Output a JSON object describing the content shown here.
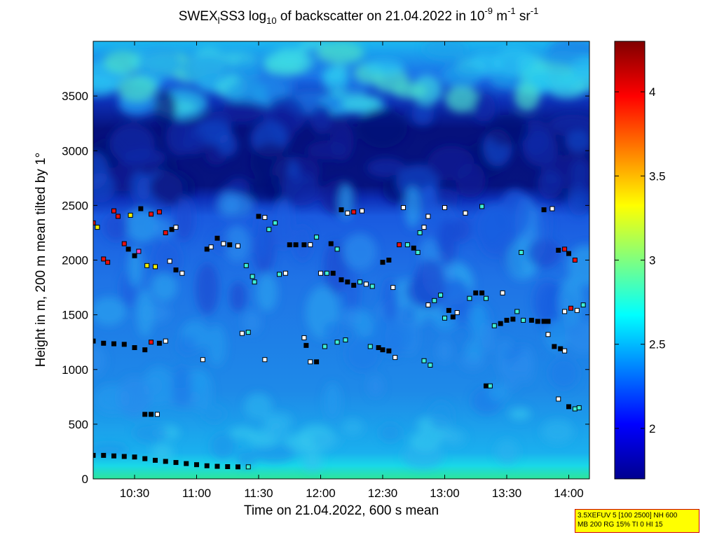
{
  "chart_data": {
    "type": "heatmap",
    "title": {
      "prefix": "SWEX",
      "sub1": "l",
      "mid1": "SS3 log",
      "sub2": "10",
      "mid2": " of backscatter on 21.04.2022 in 10",
      "sup1": "-9",
      "mid3": " m",
      "sup2": "-1",
      "mid4": " sr",
      "sup3": "-1"
    },
    "xlabel": "Time on 21.04.2022, 600 s mean",
    "ylabel": "Height in m, 200 m mean tilted by 1°",
    "xlim": [
      "10:10",
      "14:10"
    ],
    "ylim": [
      0,
      4000
    ],
    "x_ticks": [
      "10:30",
      "11:00",
      "11:30",
      "12:00",
      "12:30",
      "13:00",
      "13:30",
      "14:00"
    ],
    "y_ticks": [
      0,
      500,
      1000,
      1500,
      2000,
      2500,
      3000,
      3500
    ],
    "colorbar": {
      "range": [
        1.7,
        4.3
      ],
      "ticks": [
        2,
        2.5,
        3,
        3.5,
        4
      ],
      "colormap": "jet"
    },
    "field": {
      "description_units": "log10 backscatter",
      "surface_layer": {
        "height_range": [
          0,
          150
        ],
        "value": 2.5
      },
      "boundary_layer": {
        "height_range": [
          150,
          2500
        ],
        "value": 2.1
      },
      "clear_layer": {
        "height_range": [
          2500,
          3400
        ],
        "value": 1.75
      },
      "upper_layer": {
        "height_range": [
          3400,
          4000
        ],
        "value": 2.3
      }
    },
    "markers": [
      {
        "t": "10:10",
        "h": 215,
        "c": "black"
      },
      {
        "t": "10:15",
        "h": 215,
        "c": "black"
      },
      {
        "t": "10:20",
        "h": 210,
        "c": "black"
      },
      {
        "t": "10:25",
        "h": 205,
        "c": "black"
      },
      {
        "t": "10:30",
        "h": 200,
        "c": "black"
      },
      {
        "t": "10:35",
        "h": 185,
        "c": "black"
      },
      {
        "t": "10:40",
        "h": 170,
        "c": "black"
      },
      {
        "t": "10:45",
        "h": 160,
        "c": "black"
      },
      {
        "t": "10:50",
        "h": 150,
        "c": "black"
      },
      {
        "t": "10:55",
        "h": 140,
        "c": "black"
      },
      {
        "t": "11:00",
        "h": 130,
        "c": "black"
      },
      {
        "t": "11:05",
        "h": 120,
        "c": "black"
      },
      {
        "t": "11:10",
        "h": 115,
        "c": "black"
      },
      {
        "t": "11:15",
        "h": 112,
        "c": "black"
      },
      {
        "t": "11:20",
        "h": 110,
        "c": "black"
      },
      {
        "t": "11:25",
        "h": 110,
        "c": "cyan"
      },
      {
        "t": "10:10",
        "h": 1260,
        "c": "black"
      },
      {
        "t": "10:15",
        "h": 1240,
        "c": "black"
      },
      {
        "t": "10:20",
        "h": 1235,
        "c": "black"
      },
      {
        "t": "10:25",
        "h": 1230,
        "c": "black"
      },
      {
        "t": "10:30",
        "h": 1200,
        "c": "black"
      },
      {
        "t": "10:35",
        "h": 1180,
        "c": "black"
      },
      {
        "t": "10:38",
        "h": 1250,
        "c": "red"
      },
      {
        "t": "10:42",
        "h": 1240,
        "c": "black"
      },
      {
        "t": "10:45",
        "h": 1260,
        "c": "white"
      },
      {
        "t": "10:10",
        "h": 2340,
        "c": "red"
      },
      {
        "t": "10:12",
        "h": 2300,
        "c": "yellow"
      },
      {
        "t": "10:15",
        "h": 2010,
        "c": "red"
      },
      {
        "t": "10:17",
        "h": 1980,
        "c": "red"
      },
      {
        "t": "10:20",
        "h": 2450,
        "c": "red"
      },
      {
        "t": "10:22",
        "h": 2400,
        "c": "red"
      },
      {
        "t": "10:25",
        "h": 2150,
        "c": "red"
      },
      {
        "t": "10:27",
        "h": 2100,
        "c": "black"
      },
      {
        "t": "10:28",
        "h": 2410,
        "c": "yellow"
      },
      {
        "t": "10:30",
        "h": 2040,
        "c": "black"
      },
      {
        "t": "10:32",
        "h": 2080,
        "c": "magenta"
      },
      {
        "t": "10:33",
        "h": 2470,
        "c": "black"
      },
      {
        "t": "10:36",
        "h": 1950,
        "c": "yellow"
      },
      {
        "t": "10:38",
        "h": 2420,
        "c": "red"
      },
      {
        "t": "10:40",
        "h": 1940,
        "c": "yellow"
      },
      {
        "t": "10:42",
        "h": 2440,
        "c": "red"
      },
      {
        "t": "10:45",
        "h": 2250,
        "c": "red"
      },
      {
        "t": "10:48",
        "h": 2280,
        "c": "black"
      },
      {
        "t": "10:50",
        "h": 2300,
        "c": "white"
      },
      {
        "t": "10:47",
        "h": 1990,
        "c": "white"
      },
      {
        "t": "10:50",
        "h": 1910,
        "c": "black"
      },
      {
        "t": "10:53",
        "h": 1880,
        "c": "white"
      },
      {
        "t": "10:35",
        "h": 590,
        "c": "black"
      },
      {
        "t": "10:38",
        "h": 590,
        "c": "black"
      },
      {
        "t": "10:41",
        "h": 590,
        "c": "white"
      },
      {
        "t": "11:03",
        "h": 1090,
        "c": "white"
      },
      {
        "t": "11:05",
        "h": 2100,
        "c": "black"
      },
      {
        "t": "11:07",
        "h": 2120,
        "c": "white"
      },
      {
        "t": "11:10",
        "h": 2200,
        "c": "black"
      },
      {
        "t": "11:13",
        "h": 2150,
        "c": "white"
      },
      {
        "t": "11:16",
        "h": 2140,
        "c": "black"
      },
      {
        "t": "11:20",
        "h": 2130,
        "c": "white"
      },
      {
        "t": "11:22",
        "h": 1330,
        "c": "white"
      },
      {
        "t": "11:25",
        "h": 1340,
        "c": "cyan"
      },
      {
        "t": "11:24",
        "h": 1950,
        "c": "cyan"
      },
      {
        "t": "11:27",
        "h": 1850,
        "c": "cyan"
      },
      {
        "t": "11:28",
        "h": 1800,
        "c": "cyan"
      },
      {
        "t": "11:30",
        "h": 2400,
        "c": "black"
      },
      {
        "t": "11:33",
        "h": 2390,
        "c": "white"
      },
      {
        "t": "11:35",
        "h": 2280,
        "c": "cyan"
      },
      {
        "t": "11:33",
        "h": 1090,
        "c": "white"
      },
      {
        "t": "11:38",
        "h": 2340,
        "c": "cyan"
      },
      {
        "t": "11:40",
        "h": 1870,
        "c": "cyan"
      },
      {
        "t": "11:43",
        "h": 1880,
        "c": "white"
      },
      {
        "t": "11:45",
        "h": 2140,
        "c": "black"
      },
      {
        "t": "11:48",
        "h": 2140,
        "c": "black"
      },
      {
        "t": "11:52",
        "h": 2140,
        "c": "black"
      },
      {
        "t": "11:55",
        "h": 2140,
        "c": "white"
      },
      {
        "t": "11:52",
        "h": 1290,
        "c": "white"
      },
      {
        "t": "11:53",
        "h": 1220,
        "c": "black"
      },
      {
        "t": "11:55",
        "h": 1070,
        "c": "white"
      },
      {
        "t": "11:58",
        "h": 1070,
        "c": "black"
      },
      {
        "t": "11:58",
        "h": 2210,
        "c": "cyan"
      },
      {
        "t": "12:00",
        "h": 1880,
        "c": "white"
      },
      {
        "t": "12:02",
        "h": 1210,
        "c": "cyan"
      },
      {
        "t": "12:03",
        "h": 1880,
        "c": "cyan"
      },
      {
        "t": "12:05",
        "h": 2150,
        "c": "black"
      },
      {
        "t": "12:06",
        "h": 1880,
        "c": "black"
      },
      {
        "t": "12:08",
        "h": 2100,
        "c": "cyan"
      },
      {
        "t": "12:08",
        "h": 1250,
        "c": "cyan"
      },
      {
        "t": "12:10",
        "h": 2460,
        "c": "black"
      },
      {
        "t": "12:10",
        "h": 1820,
        "c": "black"
      },
      {
        "t": "12:13",
        "h": 2430,
        "c": "white"
      },
      {
        "t": "12:13",
        "h": 1800,
        "c": "black"
      },
      {
        "t": "12:12",
        "h": 1270,
        "c": "cyan"
      },
      {
        "t": "12:16",
        "h": 2440,
        "c": "red"
      },
      {
        "t": "12:16",
        "h": 1770,
        "c": "black"
      },
      {
        "t": "12:19",
        "h": 1800,
        "c": "cyan"
      },
      {
        "t": "12:20",
        "h": 2450,
        "c": "white"
      },
      {
        "t": "12:22",
        "h": 1780,
        "c": "white"
      },
      {
        "t": "12:24",
        "h": 1210,
        "c": "cyan"
      },
      {
        "t": "12:25",
        "h": 1760,
        "c": "cyan"
      },
      {
        "t": "12:28",
        "h": 1200,
        "c": "black"
      },
      {
        "t": "12:30",
        "h": 1180,
        "c": "black"
      },
      {
        "t": "12:33",
        "h": 1170,
        "c": "black"
      },
      {
        "t": "12:36",
        "h": 1110,
        "c": "white"
      },
      {
        "t": "12:30",
        "h": 1980,
        "c": "black"
      },
      {
        "t": "12:33",
        "h": 2000,
        "c": "black"
      },
      {
        "t": "12:35",
        "h": 1750,
        "c": "white"
      },
      {
        "t": "12:38",
        "h": 2140,
        "c": "red"
      },
      {
        "t": "12:40",
        "h": 2480,
        "c": "white"
      },
      {
        "t": "12:42",
        "h": 2140,
        "c": "cyan"
      },
      {
        "t": "12:45",
        "h": 2110,
        "c": "black"
      },
      {
        "t": "12:47",
        "h": 2070,
        "c": "cyan"
      },
      {
        "t": "12:48",
        "h": 2250,
        "c": "cyan"
      },
      {
        "t": "12:50",
        "h": 2300,
        "c": "white"
      },
      {
        "t": "12:52",
        "h": 2400,
        "c": "white"
      },
      {
        "t": "12:50",
        "h": 1080,
        "c": "cyan"
      },
      {
        "t": "12:53",
        "h": 1040,
        "c": "cyan"
      },
      {
        "t": "12:52",
        "h": 1590,
        "c": "white"
      },
      {
        "t": "12:55",
        "h": 1630,
        "c": "cyan"
      },
      {
        "t": "12:58",
        "h": 1680,
        "c": "cyan"
      },
      {
        "t": "13:00",
        "h": 1470,
        "c": "cyan"
      },
      {
        "t": "13:02",
        "h": 1540,
        "c": "black"
      },
      {
        "t": "13:04",
        "h": 1480,
        "c": "black"
      },
      {
        "t": "13:06",
        "h": 1520,
        "c": "white"
      },
      {
        "t": "13:00",
        "h": 2480,
        "c": "white"
      },
      {
        "t": "13:10",
        "h": 2430,
        "c": "white"
      },
      {
        "t": "13:12",
        "h": 1650,
        "c": "cyan"
      },
      {
        "t": "13:15",
        "h": 1700,
        "c": "black"
      },
      {
        "t": "13:18",
        "h": 1700,
        "c": "black"
      },
      {
        "t": "13:20",
        "h": 1650,
        "c": "cyan"
      },
      {
        "t": "13:18",
        "h": 2490,
        "c": "cyan"
      },
      {
        "t": "13:20",
        "h": 850,
        "c": "black"
      },
      {
        "t": "13:22",
        "h": 850,
        "c": "cyan"
      },
      {
        "t": "13:24",
        "h": 1400,
        "c": "cyan"
      },
      {
        "t": "13:27",
        "h": 1420,
        "c": "black"
      },
      {
        "t": "13:30",
        "h": 1450,
        "c": "black"
      },
      {
        "t": "13:33",
        "h": 1460,
        "c": "black"
      },
      {
        "t": "13:35",
        "h": 1530,
        "c": "cyan"
      },
      {
        "t": "13:38",
        "h": 1450,
        "c": "cyan"
      },
      {
        "t": "13:28",
        "h": 1700,
        "c": "white"
      },
      {
        "t": "13:37",
        "h": 2070,
        "c": "cyan"
      },
      {
        "t": "13:42",
        "h": 1450,
        "c": "black"
      },
      {
        "t": "13:45",
        "h": 1440,
        "c": "black"
      },
      {
        "t": "13:48",
        "h": 1440,
        "c": "black"
      },
      {
        "t": "13:50",
        "h": 1440,
        "c": "black"
      },
      {
        "t": "13:48",
        "h": 2460,
        "c": "black"
      },
      {
        "t": "13:52",
        "h": 2470,
        "c": "white"
      },
      {
        "t": "13:50",
        "h": 1320,
        "c": "white"
      },
      {
        "t": "13:53",
        "h": 1210,
        "c": "black"
      },
      {
        "t": "13:56",
        "h": 1190,
        "c": "black"
      },
      {
        "t": "13:58",
        "h": 1170,
        "c": "white"
      },
      {
        "t": "13:55",
        "h": 2090,
        "c": "black"
      },
      {
        "t": "13:58",
        "h": 2100,
        "c": "red"
      },
      {
        "t": "14:00",
        "h": 2060,
        "c": "black"
      },
      {
        "t": "14:03",
        "h": 2000,
        "c": "red"
      },
      {
        "t": "13:58",
        "h": 1530,
        "c": "white"
      },
      {
        "t": "14:01",
        "h": 1560,
        "c": "red"
      },
      {
        "t": "14:04",
        "h": 1540,
        "c": "white"
      },
      {
        "t": "14:07",
        "h": 1590,
        "c": "cyan"
      },
      {
        "t": "13:55",
        "h": 730,
        "c": "white"
      },
      {
        "t": "14:00",
        "h": 660,
        "c": "black"
      },
      {
        "t": "14:03",
        "h": 640,
        "c": "cyan"
      },
      {
        "t": "14:05",
        "h": 650,
        "c": "cyan"
      }
    ]
  },
  "infobox": {
    "line1": "3.5XEFUV 5 [100 2500] NH 600",
    "line2": "MB 200 RG 15% TI 0 HI 15"
  }
}
